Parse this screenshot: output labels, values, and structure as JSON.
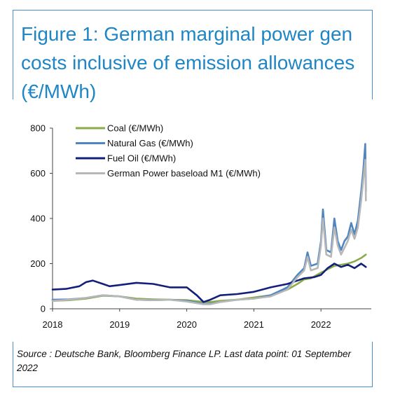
{
  "header": {
    "title": "Figure 1: German marginal power gen costs inclusive of emission allowances (€/MWh)"
  },
  "footer": {
    "source": "Source : Deutsche Bank, Bloomberg Finance LP. Last data point: 01 September 2022"
  },
  "chart_data": {
    "type": "line",
    "title": "Figure 1: German marginal power gen costs inclusive of emission allowances (€/MWh)",
    "xlabel": "",
    "ylabel": "",
    "xlim": [
      2018.0,
      2022.75
    ],
    "ylim": [
      0,
      800
    ],
    "x_ticks": [
      2018,
      2019,
      2020,
      2021,
      2022
    ],
    "y_ticks": [
      0,
      200,
      400,
      600,
      800
    ],
    "grid": false,
    "legend_position": "top-left",
    "series": [
      {
        "name": "Coal (€/MWh)",
        "color": "#8aab4a",
        "x": [
          2018.0,
          2018.25,
          2018.5,
          2018.75,
          2019.0,
          2019.25,
          2019.5,
          2019.75,
          2020.0,
          2020.25,
          2020.35,
          2020.5,
          2020.75,
          2021.0,
          2021.25,
          2021.5,
          2021.65,
          2021.75,
          2021.85,
          2022.0,
          2022.1,
          2022.2,
          2022.3,
          2022.4,
          2022.5,
          2022.6,
          2022.67
        ],
        "y": [
          35,
          38,
          45,
          58,
          55,
          45,
          42,
          40,
          38,
          30,
          30,
          35,
          40,
          50,
          60,
          85,
          110,
          130,
          135,
          160,
          175,
          190,
          195,
          200,
          210,
          225,
          240
        ]
      },
      {
        "name": "Natural Gas (€/MWh)",
        "color": "#4f86c1",
        "x": [
          2018.0,
          2018.25,
          2018.5,
          2018.75,
          2019.0,
          2019.25,
          2019.5,
          2019.75,
          2020.0,
          2020.25,
          2020.35,
          2020.5,
          2020.75,
          2021.0,
          2021.25,
          2021.5,
          2021.65,
          2021.75,
          2021.8,
          2021.85,
          2021.95,
          2022.0,
          2022.03,
          2022.08,
          2022.15,
          2022.2,
          2022.25,
          2022.3,
          2022.35,
          2022.4,
          2022.45,
          2022.5,
          2022.55,
          2022.6,
          2022.63,
          2022.66,
          2022.67
        ],
        "y": [
          40,
          42,
          48,
          60,
          55,
          40,
          38,
          40,
          35,
          22,
          22,
          30,
          40,
          45,
          60,
          95,
          150,
          180,
          250,
          190,
          200,
          300,
          440,
          260,
          250,
          400,
          300,
          260,
          300,
          320,
          380,
          330,
          390,
          520,
          610,
          730,
          520
        ]
      },
      {
        "name": "Fuel Oil (€/MWh)",
        "color": "#12207a",
        "x": [
          2018.0,
          2018.2,
          2018.4,
          2018.5,
          2018.6,
          2018.75,
          2018.85,
          2019.0,
          2019.25,
          2019.5,
          2019.75,
          2020.0,
          2020.15,
          2020.25,
          2020.35,
          2020.5,
          2020.75,
          2021.0,
          2021.25,
          2021.5,
          2021.65,
          2021.75,
          2021.9,
          2022.0,
          2022.1,
          2022.2,
          2022.3,
          2022.4,
          2022.5,
          2022.6,
          2022.67
        ],
        "y": [
          85,
          88,
          100,
          118,
          125,
          110,
          100,
          105,
          115,
          110,
          95,
          95,
          60,
          30,
          40,
          60,
          65,
          75,
          95,
          110,
          125,
          135,
          140,
          150,
          180,
          200,
          185,
          195,
          180,
          200,
          185
        ]
      },
      {
        "name": "German Power baseload M1 (€/MWh)",
        "color": "#b7b7b7",
        "x": [
          2018.0,
          2018.25,
          2018.5,
          2018.75,
          2019.0,
          2019.25,
          2019.5,
          2019.75,
          2020.0,
          2020.25,
          2020.35,
          2020.5,
          2020.75,
          2021.0,
          2021.25,
          2021.5,
          2021.65,
          2021.75,
          2021.8,
          2021.85,
          2021.95,
          2022.0,
          2022.03,
          2022.08,
          2022.15,
          2022.2,
          2022.25,
          2022.3,
          2022.35,
          2022.4,
          2022.45,
          2022.5,
          2022.55,
          2022.6,
          2022.63,
          2022.66,
          2022.67
        ],
        "y": [
          35,
          40,
          48,
          60,
          55,
          40,
          38,
          40,
          32,
          20,
          20,
          30,
          40,
          45,
          55,
          85,
          140,
          170,
          230,
          170,
          180,
          280,
          400,
          240,
          230,
          360,
          280,
          240,
          270,
          300,
          350,
          310,
          360,
          480,
          570,
          660,
          480
        ]
      }
    ]
  }
}
